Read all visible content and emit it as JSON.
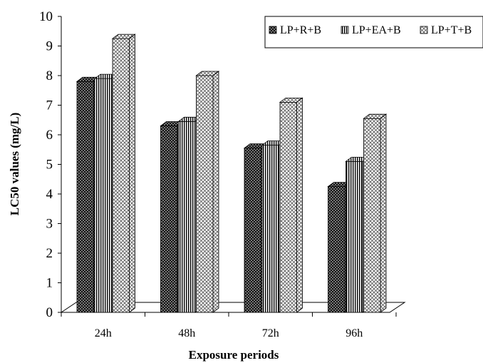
{
  "chart_data": {
    "type": "bar",
    "categories": [
      "24h",
      "48h",
      "72h",
      "96h"
    ],
    "series": [
      {
        "name": "LP+R+B",
        "values": [
          7.8,
          6.3,
          5.55,
          4.25
        ],
        "pattern": "dots-dark"
      },
      {
        "name": "LP+EA+B",
        "values": [
          7.9,
          6.45,
          5.65,
          5.1
        ],
        "pattern": "vertical-stripes"
      },
      {
        "name": "LP+T+B",
        "values": [
          9.25,
          8.0,
          7.1,
          6.55
        ],
        "pattern": "crosshatch-light"
      }
    ],
    "title": "",
    "xlabel": "Exposure periods",
    "ylabel": "LC50 values (mg/L)",
    "ylim": [
      0,
      10
    ],
    "yticks": [
      0,
      1,
      2,
      3,
      4,
      5,
      6,
      7,
      8,
      9,
      10
    ],
    "grid": false,
    "legend_position": "top-right",
    "style": "3d-column"
  }
}
